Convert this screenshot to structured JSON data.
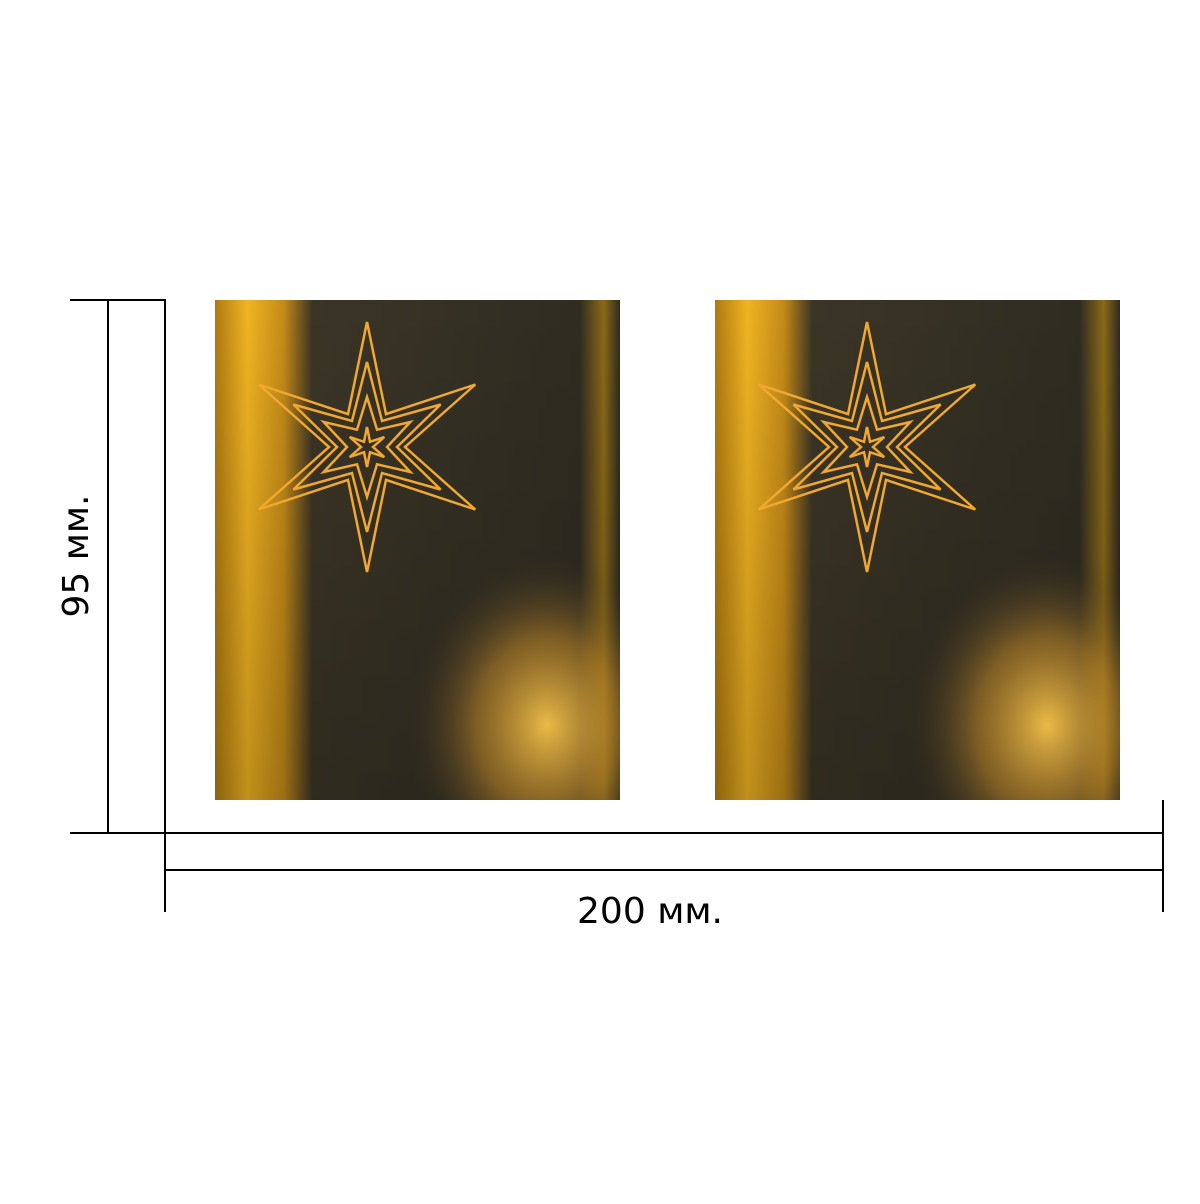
{
  "dimensions": {
    "height": {
      "label": "95 мм."
    },
    "width": {
      "label": "200 мм."
    }
  }
}
